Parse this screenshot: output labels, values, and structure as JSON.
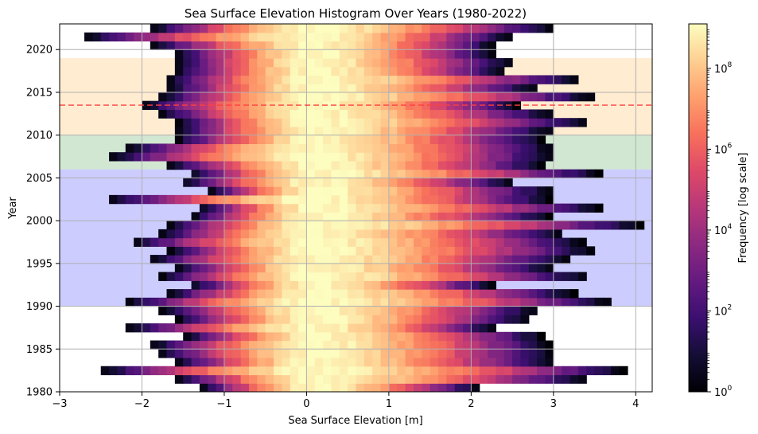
{
  "chart_data": {
    "type": "heatmap",
    "title": "Sea Surface Elevation Histogram Over Years (1980-2022)",
    "xlabel": "Sea Surface Elevation [m]",
    "ylabel": "Year",
    "xlim": [
      -3,
      4.2
    ],
    "ylim": [
      1980,
      2023
    ],
    "x_ticks": [
      -3,
      -2,
      -1,
      0,
      1,
      2,
      3,
      4
    ],
    "x_tick_labels": [
      "−3",
      "−2",
      "−1",
      "0",
      "1",
      "2",
      "3",
      "4"
    ],
    "y_ticks": [
      1980,
      1985,
      1990,
      1995,
      2000,
      2005,
      2010,
      2015,
      2020
    ],
    "y_tick_labels": [
      "1980",
      "1985",
      "1990",
      "1995",
      "2000",
      "2005",
      "2010",
      "2015",
      "2020"
    ],
    "grid": true,
    "colormap": "magma",
    "bin_width_m": 0.1,
    "peak_center_m": 0.1,
    "peak_log10_frequency": 9.1,
    "year_ranges": [
      [
        1980,
        -1.3,
        2.1
      ],
      [
        1981,
        -1.6,
        3.4
      ],
      [
        1982,
        -2.5,
        3.9
      ],
      [
        1983,
        -1.6,
        3.0
      ],
      [
        1984,
        -1.8,
        3.0
      ],
      [
        1985,
        -1.9,
        3.0
      ],
      [
        1986,
        -1.5,
        2.9
      ],
      [
        1987,
        -2.2,
        2.3
      ],
      [
        1988,
        -1.6,
        2.7
      ],
      [
        1989,
        -1.8,
        2.8
      ],
      [
        1990,
        -2.2,
        3.7
      ],
      [
        1991,
        -1.7,
        3.3
      ],
      [
        1992,
        -1.4,
        2.3
      ],
      [
        1993,
        -1.8,
        3.4
      ],
      [
        1994,
        -1.6,
        3.0
      ],
      [
        1995,
        -1.9,
        3.2
      ],
      [
        1996,
        -1.7,
        3.5
      ],
      [
        1997,
        -2.1,
        3.4
      ],
      [
        1998,
        -1.8,
        3.1
      ],
      [
        1999,
        -1.7,
        4.1
      ],
      [
        2000,
        -1.4,
        3.0
      ],
      [
        2001,
        -1.3,
        3.6
      ],
      [
        2002,
        -2.4,
        3.0
      ],
      [
        2003,
        -1.2,
        3.0
      ],
      [
        2004,
        -1.5,
        2.5
      ],
      [
        2005,
        -1.4,
        3.6
      ],
      [
        2006,
        -1.7,
        2.9
      ],
      [
        2007,
        -2.4,
        3.0
      ],
      [
        2008,
        -2.2,
        3.0
      ],
      [
        2009,
        -1.6,
        2.9
      ],
      [
        2010,
        -1.6,
        3.0
      ],
      [
        2011,
        -1.6,
        3.4
      ],
      [
        2012,
        -1.8,
        3.0
      ],
      [
        2013,
        -2.0,
        2.6
      ],
      [
        2014,
        -1.8,
        3.5
      ],
      [
        2015,
        -1.7,
        2.8
      ],
      [
        2016,
        -1.7,
        3.3
      ],
      [
        2017,
        -1.6,
        2.4
      ],
      [
        2018,
        -1.6,
        2.5
      ],
      [
        2019,
        -1.6,
        2.3
      ],
      [
        2020,
        -1.9,
        2.3
      ],
      [
        2021,
        -2.7,
        2.5
      ],
      [
        2022,
        -1.9,
        3.0
      ]
    ],
    "shaded_year_bands": [
      {
        "from": 1990,
        "to": 2006,
        "color": "#ccccff"
      },
      {
        "from": 2006,
        "to": 2010,
        "color": "#d1e7d1"
      },
      {
        "from": 2010,
        "to": 2019,
        "color": "#ffecd1"
      }
    ],
    "reference_line": {
      "year": 2013.5,
      "color": "#ff4040",
      "style": "dashed"
    },
    "colorbar": {
      "label": "Frequency [log scale]",
      "scale": "log",
      "min_exp": 0,
      "max_exp": 9.1,
      "ticks": [
        {
          "exp": 0,
          "base": "10",
          "power": "0"
        },
        {
          "exp": 2,
          "base": "10",
          "power": "2"
        },
        {
          "exp": 4,
          "base": "10",
          "power": "4"
        },
        {
          "exp": 6,
          "base": "10",
          "power": "6"
        },
        {
          "exp": 8,
          "base": "10",
          "power": "8"
        }
      ]
    }
  }
}
